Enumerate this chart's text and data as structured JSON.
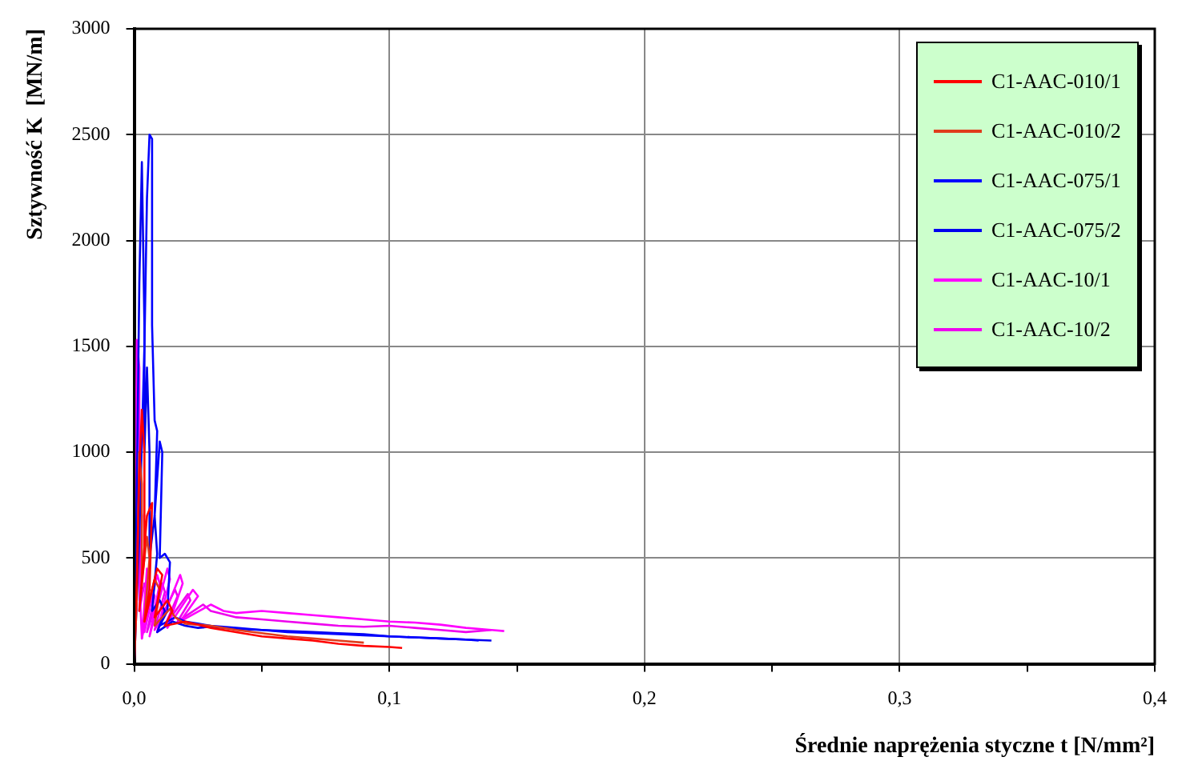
{
  "chart_data": {
    "type": "line",
    "xlabel": "Średnie naprężenia styczne t [N/mm²]",
    "ylabel": "Sztywność K  [MN/m]",
    "xlim": [
      0,
      0.4
    ],
    "xticks": [
      {
        "value": 0,
        "label": "0,0"
      },
      {
        "value": 0.05,
        "label": null
      },
      {
        "value": 0.1,
        "label": "0,1"
      },
      {
        "value": 0.15,
        "label": null
      },
      {
        "value": 0.2,
        "label": "0,2"
      },
      {
        "value": 0.25,
        "label": null
      },
      {
        "value": 0.3,
        "label": "0,3"
      },
      {
        "value": 0.35,
        "label": null
      },
      {
        "value": 0.4,
        "label": "0,4"
      }
    ],
    "ylim": [
      0,
      3000
    ],
    "yticks": [
      0,
      500,
      1000,
      1500,
      2000,
      2500,
      3000
    ],
    "grid": true,
    "legend": "top right",
    "marker": "none",
    "line_style": "solid",
    "series": [
      {
        "name": "C1-AAC-010/1",
        "color": "#ff0000",
        "x": [
          0,
          0.001,
          0.002,
          0.003,
          0.004,
          0.004,
          0.002,
          0.005,
          0.007,
          0.006,
          0.004,
          0.009,
          0.011,
          0.008,
          0.013,
          0.015,
          0.012,
          0.02,
          0.03,
          0.04,
          0.05,
          0.06,
          0.07,
          0.08,
          0.09,
          0.1,
          0.105
        ],
        "values": [
          0,
          400,
          900,
          1200,
          1000,
          500,
          250,
          700,
          760,
          350,
          200,
          450,
          420,
          220,
          300,
          250,
          180,
          200,
          170,
          150,
          130,
          120,
          110,
          95,
          85,
          80,
          75
        ]
      },
      {
        "name": "C1-AAC-010/2",
        "color": "#e03c1c",
        "x": [
          0,
          0.001,
          0.002,
          0.003,
          0.003,
          0.005,
          0.006,
          0.004,
          0.008,
          0.01,
          0.008,
          0.014,
          0.016,
          0.02,
          0.03,
          0.04,
          0.05,
          0.06,
          0.07,
          0.08,
          0.09
        ],
        "values": [
          0,
          300,
          1000,
          850,
          400,
          600,
          500,
          200,
          400,
          350,
          180,
          260,
          220,
          190,
          180,
          160,
          145,
          130,
          120,
          110,
          100
        ]
      },
      {
        "name": "C1-AAC-075/1",
        "color": "#0000ff",
        "x": [
          0,
          0.002,
          0.004,
          0.005,
          0.006,
          0.007,
          0.007,
          0.008,
          0.009,
          0.008,
          0.01,
          0.011,
          0.01,
          0.012,
          0.014,
          0.013,
          0.01,
          0.016,
          0.02,
          0.025,
          0.03,
          0.04,
          0.05,
          0.06,
          0.07,
          0.08,
          0.09,
          0.1,
          0.11,
          0.12,
          0.13,
          0.135
        ],
        "values": [
          0,
          600,
          1500,
          2200,
          2500,
          2480,
          1600,
          1150,
          1100,
          700,
          1050,
          1000,
          500,
          520,
          480,
          250,
          180,
          220,
          200,
          190,
          180,
          170,
          160,
          150,
          145,
          140,
          135,
          130,
          125,
          120,
          115,
          110
        ]
      },
      {
        "name": "C1-AAC-075/2",
        "color": "#0000ee",
        "x": [
          0,
          0.001,
          0.002,
          0.003,
          0.004,
          0.004,
          0.005,
          0.006,
          0.006,
          0.008,
          0.009,
          0.007,
          0.01,
          0.012,
          0.009,
          0.015,
          0.02,
          0.025,
          0.03,
          0.04,
          0.05,
          0.06,
          0.07,
          0.08,
          0.09,
          0.1,
          0.11,
          0.12,
          0.13,
          0.14
        ],
        "values": [
          0,
          800,
          1800,
          2370,
          1600,
          1000,
          1400,
          1000,
          500,
          700,
          520,
          250,
          300,
          250,
          150,
          200,
          180,
          170,
          175,
          165,
          160,
          155,
          150,
          145,
          140,
          130,
          125,
          120,
          115,
          110
        ]
      },
      {
        "name": "C1-AAC-10/1",
        "color": "#ff00ff",
        "x": [
          0,
          0.001,
          0.002,
          0.002,
          0.003,
          0.005,
          0.006,
          0.004,
          0.009,
          0.01,
          0.006,
          0.013,
          0.014,
          0.009,
          0.018,
          0.019,
          0.013,
          0.023,
          0.025,
          0.018,
          0.03,
          0.035,
          0.04,
          0.05,
          0.06,
          0.07,
          0.08,
          0.09,
          0.1,
          0.11,
          0.12,
          0.13,
          0.14,
          0.145
        ],
        "values": [
          0,
          1530,
          1400,
          400,
          120,
          450,
          400,
          150,
          420,
          380,
          130,
          450,
          400,
          150,
          420,
          380,
          170,
          350,
          320,
          200,
          280,
          250,
          240,
          250,
          240,
          230,
          220,
          210,
          200,
          195,
          185,
          170,
          160,
          155
        ]
      },
      {
        "name": "C1-AAC-10/2",
        "color": "#ee00ee",
        "x": [
          0,
          0.001,
          0.003,
          0.002,
          0.004,
          0.005,
          0.003,
          0.007,
          0.008,
          0.005,
          0.011,
          0.012,
          0.008,
          0.016,
          0.017,
          0.012,
          0.021,
          0.022,
          0.017,
          0.027,
          0.03,
          0.04,
          0.05,
          0.06,
          0.07,
          0.08,
          0.09,
          0.1,
          0.11,
          0.12,
          0.13,
          0.14
        ],
        "values": [
          0,
          900,
          700,
          250,
          380,
          350,
          120,
          350,
          320,
          150,
          380,
          340,
          160,
          350,
          320,
          180,
          330,
          300,
          200,
          280,
          250,
          220,
          210,
          200,
          190,
          180,
          175,
          180,
          170,
          160,
          150,
          160
        ]
      }
    ]
  }
}
